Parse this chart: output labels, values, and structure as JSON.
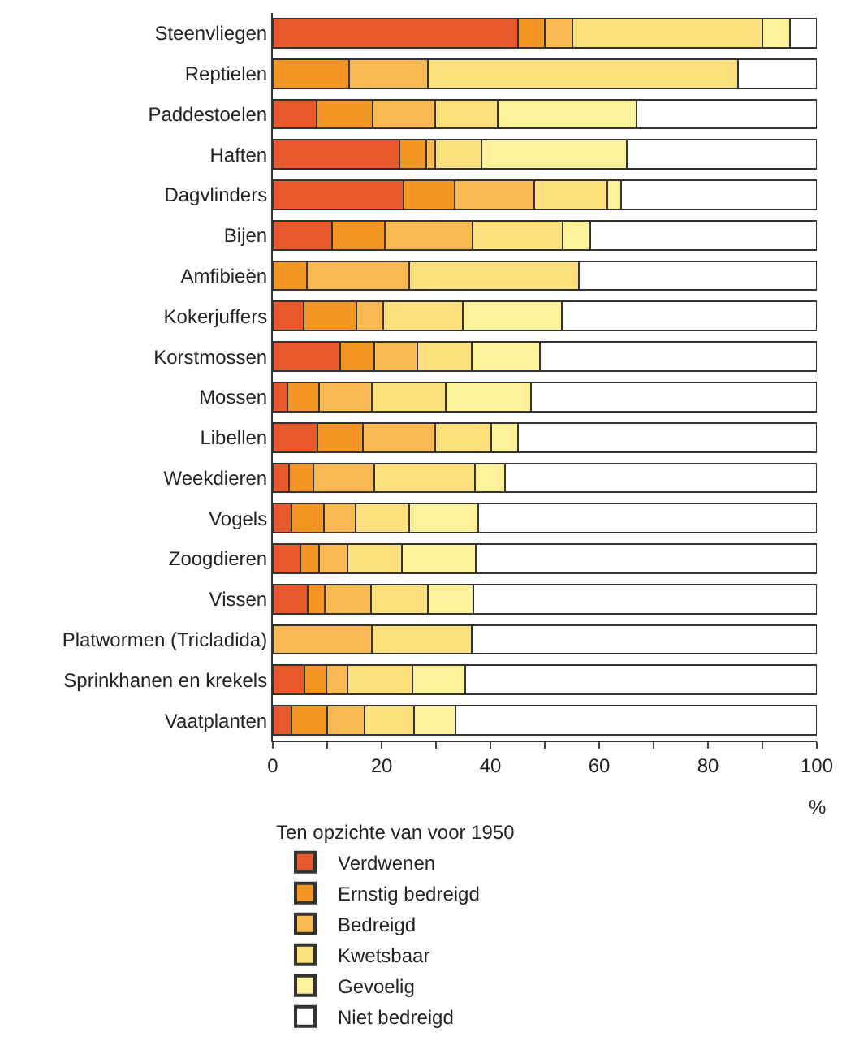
{
  "chart_data": {
    "type": "bar",
    "orientation": "horizontal",
    "stacked": true,
    "categories": [
      "Steenvliegen",
      "Reptielen",
      "Paddestoelen",
      "Haften",
      "Dagvlinders",
      "Bijen",
      "Amfibieën",
      "Kokerjuffers",
      "Korstmossen",
      "Mossen",
      "Libellen",
      "Weekdieren",
      "Vogels",
      "Zoogdieren",
      "Vissen",
      "Platwormen (Tricladida)",
      "Sprinkhanen en krekels",
      "Vaatplanten"
    ],
    "series": [
      {
        "name": "Verdwenen",
        "color": "#e85a2b",
        "values": [
          45,
          0,
          8,
          23.3,
          24,
          10.9,
          0,
          5.6,
          12.4,
          2.7,
          8.2,
          3,
          3.4,
          5,
          6.4,
          0,
          5.8,
          3.4
        ]
      },
      {
        "name": "Ernstig bedreigd",
        "color": "#f29522",
        "values": [
          5,
          14,
          10.3,
          4.9,
          9.4,
          9.7,
          6.3,
          9.7,
          6.2,
          5.8,
          8.4,
          4.5,
          6,
          3.5,
          3.2,
          0,
          4,
          6.6
        ]
      },
      {
        "name": "Bedreigd",
        "color": "#f8b852",
        "values": [
          5,
          14.5,
          11.6,
          1.7,
          14.7,
          16.1,
          18.7,
          5,
          7.9,
          9.7,
          13.3,
          11.1,
          5.8,
          5.2,
          8.4,
          18.2,
          4,
          6.8
        ]
      },
      {
        "name": "Kwetsbaar",
        "color": "#fde07e",
        "values": [
          35,
          57,
          11.4,
          8.4,
          13.4,
          16.6,
          31.3,
          14.6,
          10,
          13.6,
          10.2,
          18.5,
          9.8,
          10.1,
          10.5,
          18.3,
          11.8,
          9.1
        ]
      },
      {
        "name": "Gevoelig",
        "color": "#fdf199",
        "values": [
          5,
          0,
          25.5,
          26.7,
          2.6,
          5.1,
          0,
          18.3,
          12.6,
          15.6,
          4.9,
          5.6,
          12.8,
          13.5,
          8.4,
          0,
          9.7,
          7.7
        ]
      },
      {
        "name": "Niet bedreigd",
        "color": "#ffffff",
        "values": [
          5,
          14.5,
          33.2,
          35,
          35.9,
          41.6,
          43.7,
          46.8,
          50.9,
          52.6,
          55,
          57.3,
          62.2,
          62.7,
          63.1,
          63.5,
          64.7,
          66.4
        ]
      }
    ],
    "xlim": [
      0,
      100
    ],
    "xticks": [
      0,
      {
        "value": 10,
        "label": null
      },
      20,
      {
        "value": 30,
        "label": null
      },
      40,
      {
        "value": 50,
        "label": null
      },
      60,
      {
        "value": 70,
        "label": null
      },
      80,
      {
        "value": 90,
        "label": null
      },
      100
    ],
    "xlabel": "%",
    "legend_title": "Ten opzichte van voor 1950",
    "legend": "bottom"
  }
}
